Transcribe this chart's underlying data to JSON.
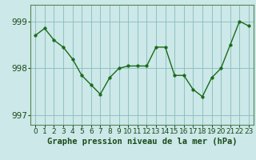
{
  "x": [
    0,
    1,
    2,
    3,
    4,
    5,
    6,
    7,
    8,
    9,
    10,
    11,
    12,
    13,
    14,
    15,
    16,
    17,
    18,
    19,
    20,
    21,
    22,
    23
  ],
  "y": [
    998.7,
    998.85,
    998.6,
    998.45,
    998.2,
    997.85,
    997.65,
    997.45,
    997.8,
    998.0,
    998.05,
    998.05,
    998.05,
    998.45,
    998.45,
    997.85,
    997.85,
    997.55,
    997.4,
    997.8,
    998.0,
    998.5,
    999.0,
    998.9
  ],
  "ylim": [
    996.8,
    999.35
  ],
  "yticks": [
    997,
    998,
    999
  ],
  "xticks": [
    0,
    1,
    2,
    3,
    4,
    5,
    6,
    7,
    8,
    9,
    10,
    11,
    12,
    13,
    14,
    15,
    16,
    17,
    18,
    19,
    20,
    21,
    22,
    23
  ],
  "line_color": "#1a6b1a",
  "marker_color": "#1a6b1a",
  "bg_color": "#cce8e8",
  "grid_color": "#88bbbb",
  "xlabel": "Graphe pression niveau de la mer (hPa)",
  "xlabel_fontsize": 7.5,
  "tick_fontsize": 6.5,
  "ytick_fontsize": 7.5,
  "border_color": "#558855"
}
